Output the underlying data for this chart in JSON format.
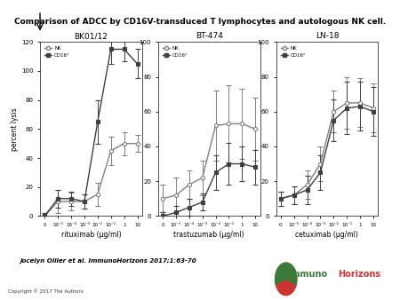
{
  "title": "Comparison of ADCC by CD16V-transduced T lymphocytes and autologous NK cell.",
  "subtitle_author": "Jocelyn Ollier et al. ImmunoHorizons 2017;1:63-70",
  "copyright": "Copyright © 2017 The Authors",
  "ylabel": "percent lysis",
  "panels": [
    {
      "title": "BK01/12",
      "xlabel": "rituximab (µg/ml)",
      "ylim": [
        0,
        120
      ],
      "yticks": [
        0,
        20,
        40,
        60,
        80,
        100,
        120
      ],
      "nk_y": [
        0,
        10,
        10,
        10,
        15,
        45,
        50,
        50
      ],
      "nk_err": [
        2,
        8,
        6,
        5,
        8,
        10,
        8,
        6
      ],
      "cd16_y": [
        0,
        12,
        12,
        10,
        65,
        115,
        115,
        105
      ],
      "cd16_err": [
        2,
        6,
        5,
        5,
        15,
        10,
        8,
        10
      ]
    },
    {
      "title": "BT-474",
      "xlabel": "trastuzumab (µg/ml)",
      "ylim": [
        0,
        100
      ],
      "yticks": [
        0,
        20,
        40,
        60,
        80,
        100
      ],
      "nk_y": [
        10,
        12,
        18,
        22,
        52,
        53,
        53,
        50
      ],
      "nk_err": [
        8,
        10,
        8,
        10,
        20,
        22,
        20,
        18
      ],
      "cd16_y": [
        0,
        2,
        5,
        8,
        25,
        30,
        30,
        28
      ],
      "cd16_err": [
        2,
        4,
        5,
        5,
        10,
        12,
        10,
        10
      ]
    },
    {
      "title": "LN-18",
      "xlabel": "cetuximab (µg/ml)",
      "ylim": [
        0,
        100
      ],
      "yticks": [
        0,
        20,
        40,
        60,
        80,
        100
      ],
      "nk_y": [
        10,
        12,
        18,
        30,
        60,
        65,
        65,
        62
      ],
      "nk_err": [
        4,
        5,
        8,
        10,
        12,
        15,
        14,
        14
      ],
      "cd16_y": [
        10,
        12,
        15,
        25,
        55,
        62,
        63,
        60
      ],
      "cd16_err": [
        4,
        5,
        8,
        10,
        12,
        15,
        14,
        14
      ]
    }
  ],
  "x_labels": [
    "0",
    "10⁻⁵",
    "10⁻⁴",
    "10⁻³",
    "10⁻²",
    "10⁻¹",
    "1",
    "10"
  ],
  "x_positions": [
    0,
    1,
    2,
    3,
    4,
    5,
    6,
    7
  ],
  "nk_color": "#808080",
  "cd16_color": "#404040",
  "marker_nk": "o",
  "marker_cd16": "s",
  "bg_color": "#ffffff",
  "line_color": "#555555",
  "logo_colors": {
    "immuno": "#3a7a3a",
    "horizons": "#cc3333"
  }
}
